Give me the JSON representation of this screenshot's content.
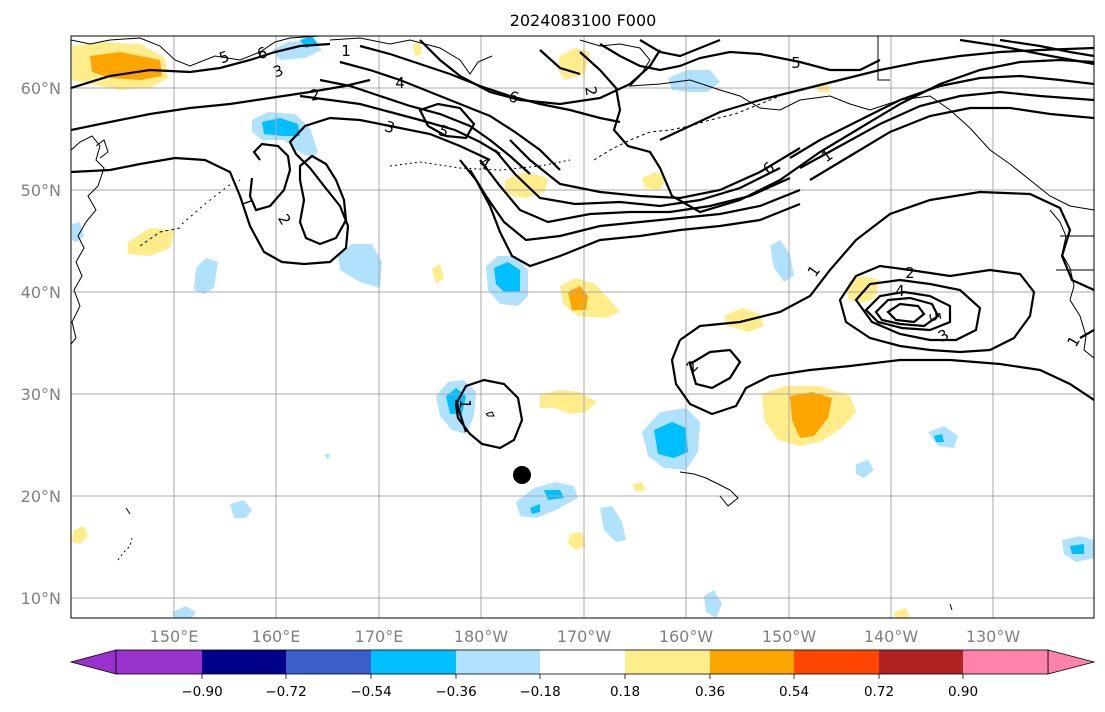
{
  "title": "2024083100 F000",
  "lat_labels": [
    "60°N",
    "50°N",
    "40°N",
    "30°N",
    "20°N",
    "10°N"
  ],
  "lon_labels": [
    "150°E",
    "160°E",
    "170°E",
    "180°W",
    "170°W",
    "160°W",
    "150°W",
    "140°W",
    "130°W"
  ],
  "colorbar": {
    "ticks": [
      "−0.90",
      "−0.72",
      "−0.54",
      "−0.36",
      "−0.18",
      "0.18",
      "0.36",
      "0.54",
      "0.72",
      "0.90"
    ],
    "colors": [
      "#9932cc",
      "#00008b",
      "#3a5fcd",
      "#00bfff",
      "#b0e2ff",
      "#ffffff",
      "#ffec8b",
      "#ffa500",
      "#ff4500",
      "#b22222",
      "#ff82ab"
    ]
  },
  "contour_labels": [
    "1",
    "2",
    "3",
    "4",
    "5",
    "6",
    "1",
    "2",
    "3",
    "4",
    "5",
    "6",
    "1",
    "2",
    "3",
    "4",
    "5",
    "1",
    "2",
    "1",
    "5",
    "6",
    "2",
    "1"
  ],
  "marker": "storm-center-dot"
}
